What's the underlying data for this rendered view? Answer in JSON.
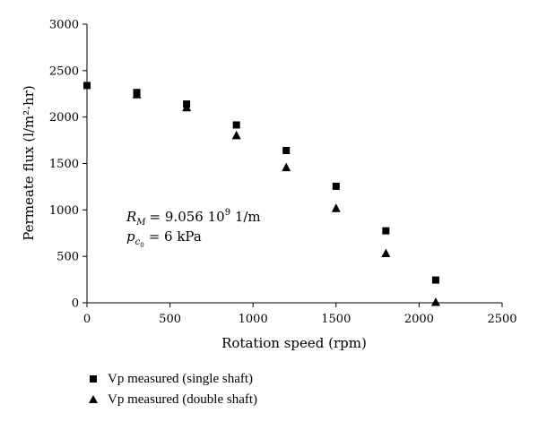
{
  "chart_data": {
    "type": "scatter",
    "title": "",
    "xlabel": "Rotation speed (rpm)",
    "ylabel": "Permeate flux (l/m²·hr)",
    "xlim": [
      0,
      2500
    ],
    "ylim": [
      0,
      3000
    ],
    "xticks": [
      "0",
      "500",
      "1000",
      "1500",
      "2000",
      "2500"
    ],
    "yticks": [
      "0",
      "500",
      "1000",
      "1500",
      "2000",
      "2500",
      "3000"
    ],
    "grid": false,
    "legend_placement": "bottom-left",
    "series": [
      {
        "name": "Vp measured (single shaft)",
        "marker": "square",
        "color": "#000000",
        "x": [
          0,
          300,
          600,
          900,
          1200,
          1500,
          1800,
          2100
        ],
        "y": [
          2340,
          2265,
          2140,
          1915,
          1640,
          1255,
          775,
          245
        ]
      },
      {
        "name": "Vp measured (double shaft)",
        "marker": "triangle",
        "color": "#000000",
        "x": [
          300,
          600,
          900,
          1200,
          1500,
          1800,
          2100
        ],
        "y": [
          2240,
          2100,
          1800,
          1455,
          1015,
          530,
          5
        ]
      }
    ],
    "annotations": {
      "rm_symbol": "R",
      "rm_sub": "M",
      "rm_value": "= 9.056 10",
      "rm_exp": "9",
      "rm_unit": " 1/m",
      "pc_symbol": "p",
      "pc_sub": "c",
      "pc_subsub": "0",
      "pc_value": "= 6 kPa"
    }
  }
}
